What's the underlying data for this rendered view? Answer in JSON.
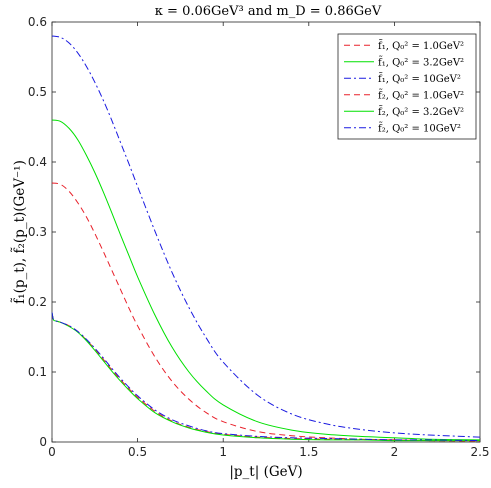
{
  "chart_data": {
    "type": "line",
    "title": "κ = 0.06GeV³ and m_D = 0.86GeV",
    "xlabel": "|p_t| (GeV)",
    "ylabel": "f̃₁(p_t), f̃₂(p_t)(GeV⁻¹)",
    "xlim": [
      0,
      2.5
    ],
    "ylim": [
      0,
      0.6
    ],
    "xticks": [
      0,
      0.5,
      1,
      1.5,
      2,
      2.5
    ],
    "xtick_labels": [
      "0",
      "0.5",
      "1",
      "1.5",
      "2",
      "2.5"
    ],
    "yticks": [
      0,
      0.1,
      0.2,
      0.3,
      0.4,
      0.5,
      0.6
    ],
    "ytick_labels": [
      "0",
      "0.1",
      "0.2",
      "0.3",
      "0.4",
      "0.5",
      "0.6"
    ],
    "grid": false,
    "legend_position": "top-right",
    "series": [
      {
        "name": "f̃₁, Q₀² = 1.0GeV²",
        "color": "#e8202a",
        "dash": "dashed",
        "x": [
          0,
          0.05,
          0.1,
          0.15,
          0.2,
          0.25,
          0.3,
          0.35,
          0.4,
          0.45,
          0.5,
          0.6,
          0.7,
          0.8,
          0.9,
          1.0,
          1.2,
          1.4,
          1.6,
          1.8,
          2.0,
          2.2,
          2.5
        ],
        "y": [
          0.37,
          0.368,
          0.358,
          0.342,
          0.322,
          0.298,
          0.272,
          0.245,
          0.218,
          0.191,
          0.166,
          0.122,
          0.087,
          0.061,
          0.042,
          0.029,
          0.015,
          0.009,
          0.006,
          0.004,
          0.003,
          0.002,
          0.001
        ]
      },
      {
        "name": "f̃₁, Q₀² = 3.2GeV²",
        "color": "#00e000",
        "dash": "solid",
        "x": [
          0,
          0.05,
          0.1,
          0.15,
          0.2,
          0.25,
          0.3,
          0.35,
          0.4,
          0.45,
          0.5,
          0.6,
          0.7,
          0.8,
          0.9,
          1.0,
          1.2,
          1.4,
          1.6,
          1.8,
          2.0,
          2.2,
          2.5
        ],
        "y": [
          0.46,
          0.458,
          0.448,
          0.432,
          0.41,
          0.385,
          0.357,
          0.327,
          0.296,
          0.266,
          0.236,
          0.182,
          0.136,
          0.1,
          0.073,
          0.053,
          0.029,
          0.017,
          0.011,
          0.008,
          0.006,
          0.004,
          0.003
        ]
      },
      {
        "name": "f̃₁, Q₀² = 10GeV²",
        "color": "#1a1ae0",
        "dash": "dashdot",
        "x": [
          0,
          0.05,
          0.1,
          0.15,
          0.2,
          0.25,
          0.3,
          0.35,
          0.4,
          0.45,
          0.5,
          0.6,
          0.7,
          0.8,
          0.9,
          1.0,
          1.2,
          1.4,
          1.6,
          1.8,
          2.0,
          2.2,
          2.5
        ],
        "y": [
          0.58,
          0.578,
          0.57,
          0.556,
          0.537,
          0.514,
          0.488,
          0.459,
          0.428,
          0.397,
          0.365,
          0.302,
          0.243,
          0.192,
          0.149,
          0.114,
          0.067,
          0.04,
          0.026,
          0.018,
          0.013,
          0.01,
          0.007
        ]
      },
      {
        "name": "f̃₂, Q₀² = 1.0GeV²",
        "color": "#e8202a",
        "dash": "dashed",
        "x": [
          0,
          0.005,
          0.01,
          0.02,
          0.05,
          0.1,
          0.15,
          0.2,
          0.25,
          0.3,
          0.35,
          0.4,
          0.45,
          0.5,
          0.6,
          0.7,
          0.8,
          0.9,
          1.0,
          1.2,
          1.4,
          1.6,
          1.8,
          2.0,
          2.2,
          2.5
        ],
        "y": [
          0.185,
          0.178,
          0.174,
          0.173,
          0.171,
          0.166,
          0.158,
          0.146,
          0.133,
          0.118,
          0.103,
          0.089,
          0.076,
          0.064,
          0.044,
          0.03,
          0.021,
          0.015,
          0.011,
          0.007,
          0.005,
          0.004,
          0.003,
          0.003,
          0.002,
          0.002
        ]
      },
      {
        "name": "f̃₂, Q₀² = 3.2GeV²",
        "color": "#00e000",
        "dash": "solid",
        "x": [
          0,
          0.005,
          0.01,
          0.02,
          0.05,
          0.1,
          0.15,
          0.2,
          0.25,
          0.3,
          0.35,
          0.4,
          0.45,
          0.5,
          0.6,
          0.7,
          0.8,
          0.9,
          1.0,
          1.2,
          1.4,
          1.6,
          1.8,
          2.0,
          2.2,
          2.5
        ],
        "y": [
          0.185,
          0.178,
          0.174,
          0.173,
          0.171,
          0.165,
          0.157,
          0.145,
          0.131,
          0.116,
          0.101,
          0.087,
          0.074,
          0.062,
          0.042,
          0.029,
          0.02,
          0.014,
          0.01,
          0.006,
          0.004,
          0.003,
          0.003,
          0.002,
          0.002,
          0.002
        ]
      },
      {
        "name": "f̃₂, Q₀² = 10GeV²",
        "color": "#1a1ae0",
        "dash": "dashdot",
        "x": [
          0,
          0.005,
          0.01,
          0.02,
          0.05,
          0.1,
          0.15,
          0.2,
          0.25,
          0.3,
          0.35,
          0.4,
          0.45,
          0.5,
          0.6,
          0.7,
          0.8,
          0.9,
          1.0,
          1.2,
          1.4,
          1.6,
          1.8,
          2.0,
          2.2,
          2.5
        ],
        "y": [
          0.185,
          0.178,
          0.174,
          0.173,
          0.171,
          0.166,
          0.158,
          0.147,
          0.134,
          0.12,
          0.105,
          0.091,
          0.078,
          0.066,
          0.046,
          0.032,
          0.023,
          0.016,
          0.012,
          0.008,
          0.006,
          0.005,
          0.004,
          0.003,
          0.003,
          0.002
        ]
      }
    ]
  }
}
